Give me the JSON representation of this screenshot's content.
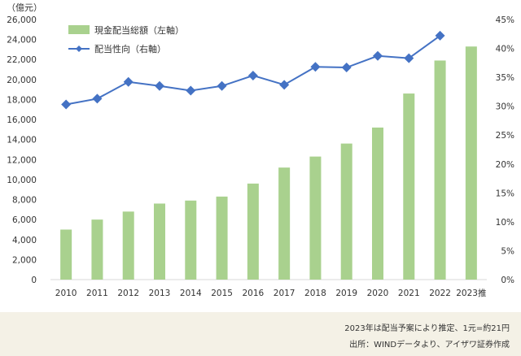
{
  "chart_data": {
    "type": "bar",
    "unit_label": "（億元）",
    "categories": [
      "2010",
      "2011",
      "2012",
      "2013",
      "2014",
      "2015",
      "2016",
      "2017",
      "2018",
      "2019",
      "2020",
      "2021",
      "2022",
      "2023推"
    ],
    "series": [
      {
        "name": "現金配当総額（左軸）",
        "type": "bar",
        "axis": "left",
        "color": "#a9d18e",
        "values": [
          5000,
          6000,
          6800,
          7600,
          7900,
          8300,
          9600,
          11200,
          12300,
          13600,
          15200,
          18600,
          21900,
          23300
        ]
      },
      {
        "name": "配当性向（右軸）",
        "type": "line",
        "axis": "right",
        "color": "#4472c4",
        "values": [
          30.3,
          31.3,
          34.2,
          33.5,
          32.7,
          33.5,
          35.3,
          33.7,
          36.8,
          36.7,
          38.7,
          38.3,
          42.2,
          null
        ]
      }
    ],
    "y_left": {
      "min": 0,
      "max": 26000,
      "step": 2000,
      "ticks": [
        "0",
        "2,000",
        "4,000",
        "6,000",
        "8,000",
        "10,000",
        "12,000",
        "14,000",
        "16,000",
        "18,000",
        "20,000",
        "22,000",
        "24,000",
        "26,000"
      ]
    },
    "y_right": {
      "min": 0,
      "max": 45,
      "step": 5,
      "ticks": [
        "0%",
        "5%",
        "10%",
        "15%",
        "20%",
        "25%",
        "30%",
        "35%",
        "40%",
        "45%"
      ]
    },
    "grid": false,
    "legend_position": "top-left"
  },
  "footer": {
    "note1": "2023年は配当予案により推定、1元=約21円",
    "note2": "出所：WINDデータより、アイザワ証券作成"
  }
}
